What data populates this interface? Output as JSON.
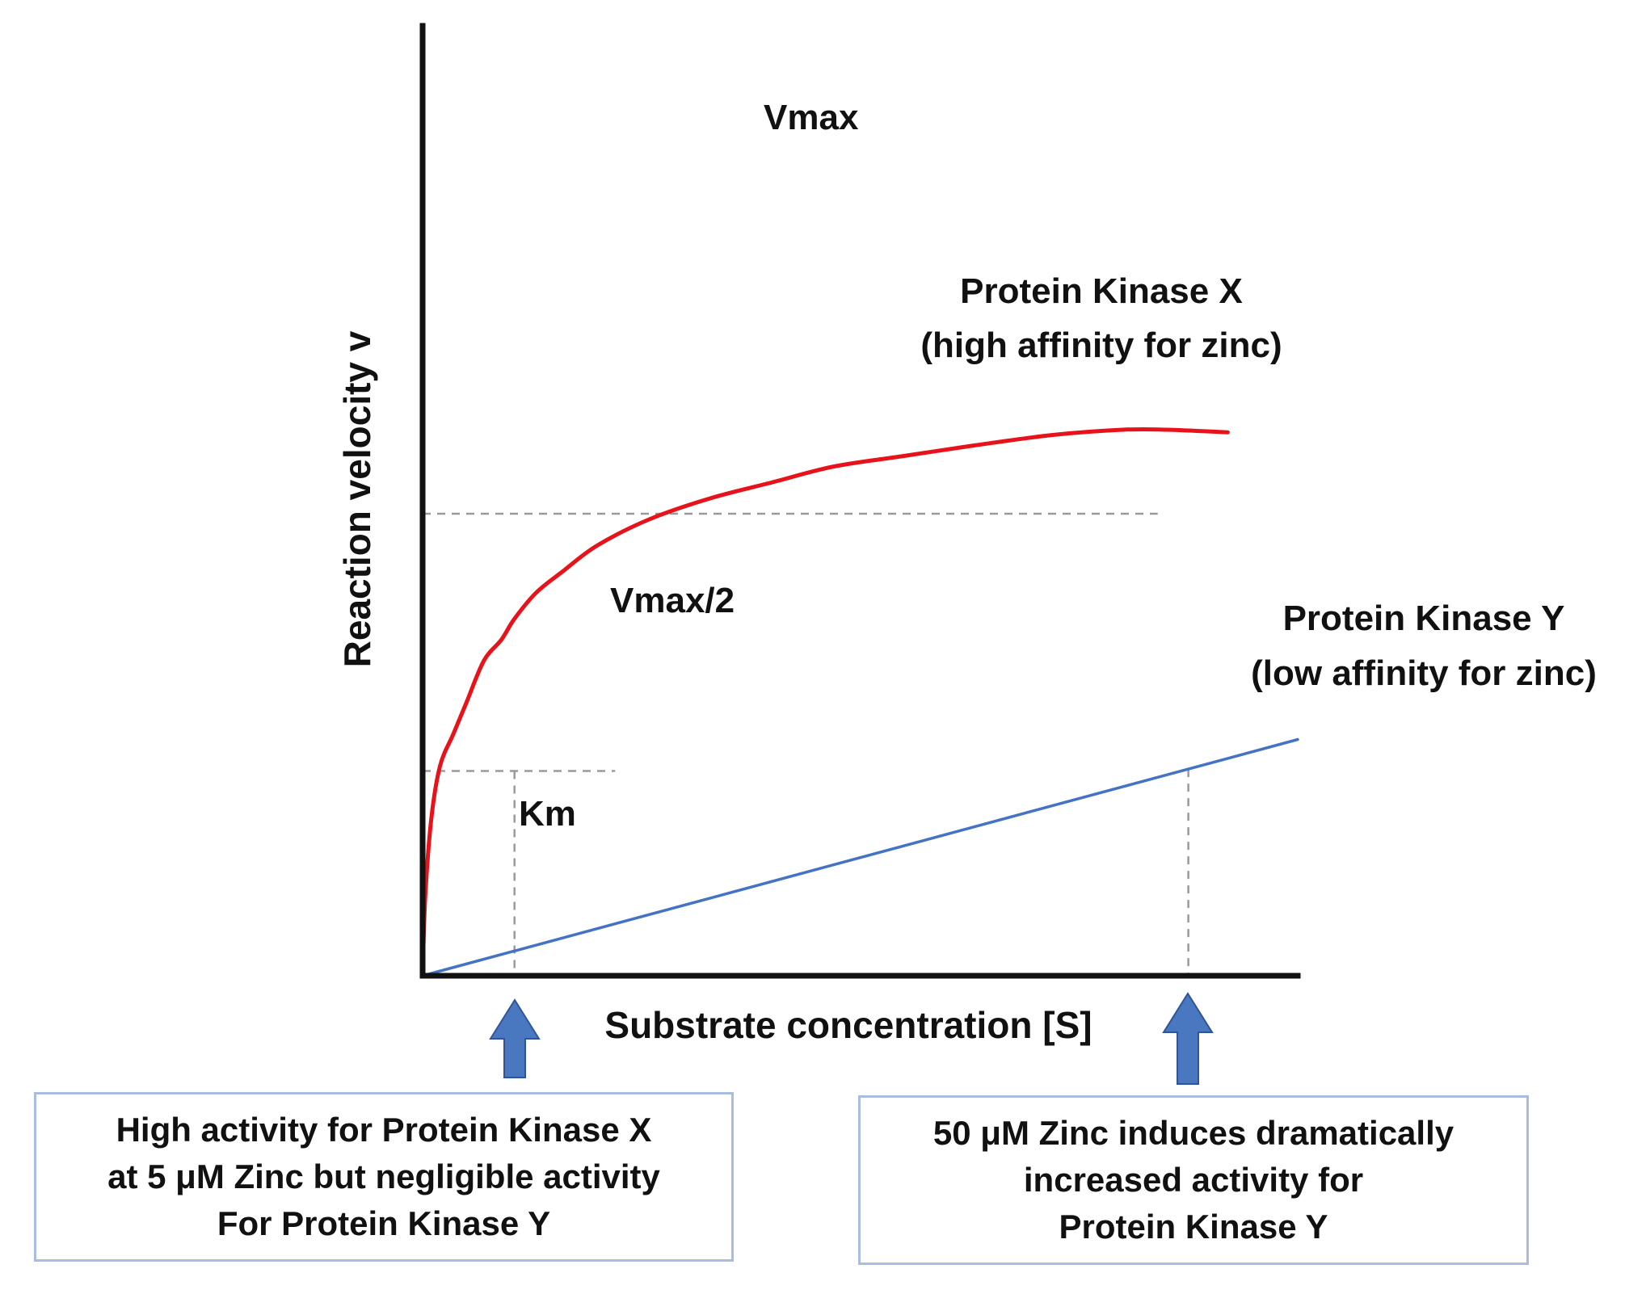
{
  "chart_data": {
    "type": "line",
    "title": "",
    "xlabel": "Substrate concentration [S]",
    "ylabel": "Reaction velocity v",
    "xlim": [
      0,
      100
    ],
    "ylim": [
      0,
      100
    ],
    "grid": false,
    "series": [
      {
        "name": "Protein Kinase X",
        "name_line2": "(high affinity for zinc)",
        "color": "#e8121a",
        "x": [
          0,
          0.3,
          1,
          2,
          3.5,
          5,
          7,
          9,
          10.5,
          13,
          16,
          20,
          26,
          33,
          40,
          47,
          55,
          63,
          72,
          80,
          85,
          92
        ],
        "y": [
          0,
          15,
          30,
          40,
          46,
          52,
          60,
          64,
          68,
          73,
          77,
          82,
          87,
          91,
          94,
          97,
          99,
          101,
          103,
          104,
          104,
          103.5
        ]
      },
      {
        "name": "Protein Kinase Y",
        "name_line2": "(low affinity for zinc)",
        "color": "#4472c4",
        "x": [
          0,
          100
        ],
        "y": [
          0,
          45
        ]
      }
    ],
    "reference_lines": {
      "vmax": {
        "label": "Vmax",
        "y": 88,
        "x_end": 84
      },
      "vmax_half": {
        "label": "Vmax/2",
        "y": 39,
        "x_end": 22
      },
      "km": {
        "label": "Km",
        "x": 10.5
      },
      "high_zinc": {
        "x": 87.5
      }
    },
    "arrows_color": "#4a78c0",
    "annotations": [
      {
        "lines": [
          "High activity for Protein Kinase X",
          "at 5 μM Zinc but negligible activity",
          "For Protein Kinase Y"
        ]
      },
      {
        "lines": [
          "50 μM Zinc induces dramatically",
          "increased activity for",
          "Protein Kinase Y"
        ]
      }
    ]
  }
}
